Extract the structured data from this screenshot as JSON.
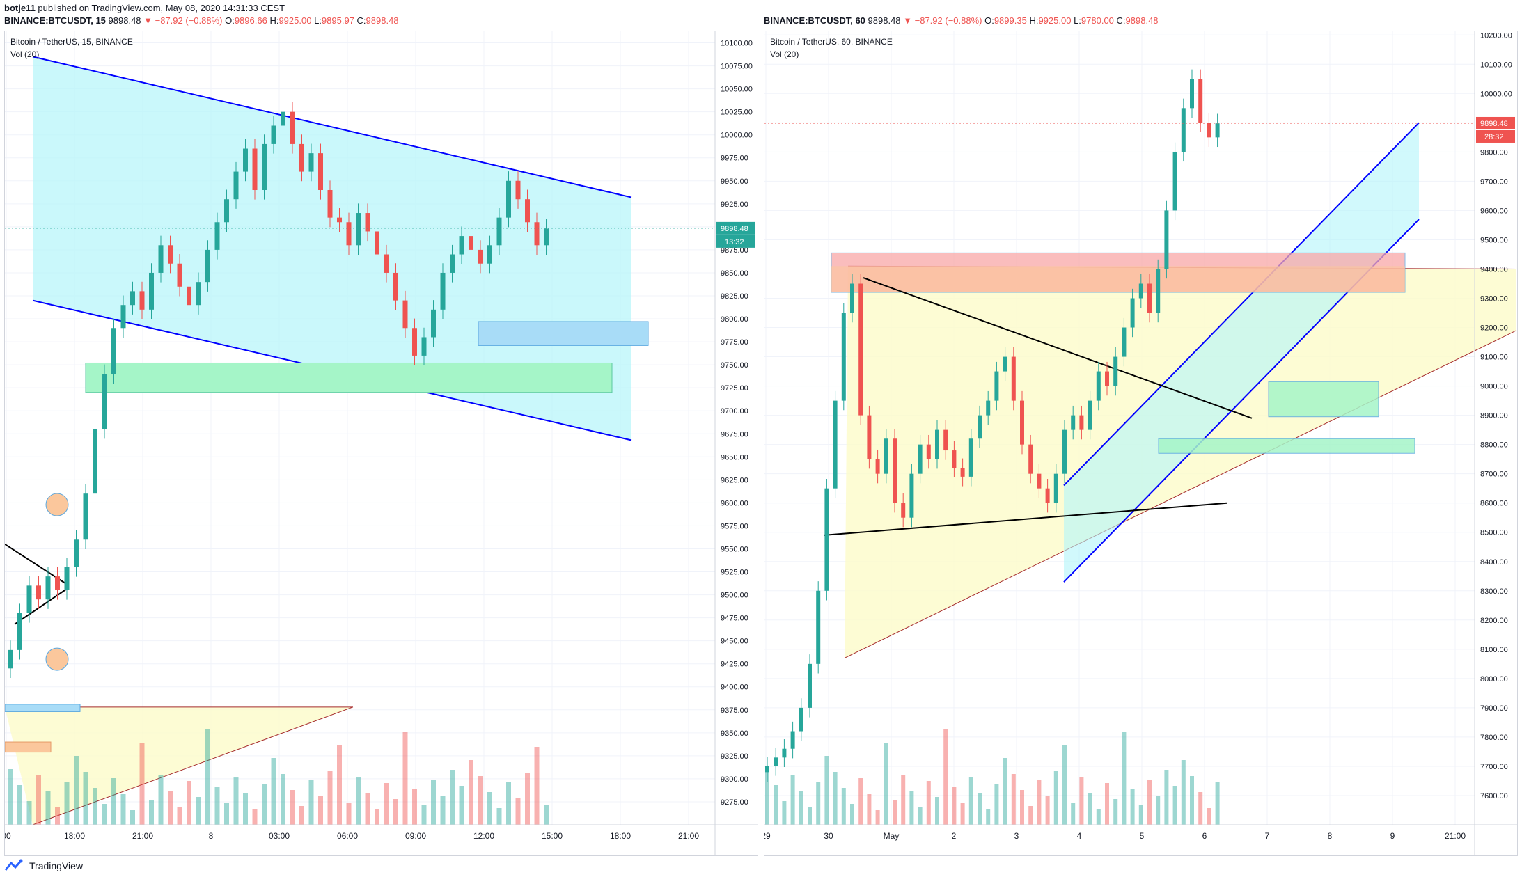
{
  "header": {
    "author": "botje11",
    "published": "published on TradingView.com, May 08, 2020 14:31:33 CEST",
    "left": {
      "symbol": "BINANCE:BTCUSDT, 15",
      "last": "9898.48",
      "change": "▼ −87.92 (−0.88%)",
      "o": "9896.66",
      "h": "9925.00",
      "l": "9895.97",
      "c": "9898.48"
    },
    "right": {
      "symbol": "BINANCE:BTCUSDT, 60",
      "last": "9898.48",
      "change": "▼ −87.92 (−0.88%)",
      "o": "9899.35",
      "h": "9925.00",
      "l": "9780.00",
      "c": "9898.48"
    }
  },
  "footer": {
    "brand": "TradingView"
  },
  "colors": {
    "up": "#26a69a",
    "down": "#ef5350",
    "channel": "#0000ff",
    "cyan": "#b3f5fa",
    "green": "#a5f5c8",
    "yellow": "#fdfbc9",
    "pink": "#f9a7a7",
    "orange": "#fbc79c"
  },
  "chart_data": [
    {
      "type": "candlestick",
      "title": "Bitcoin / TetherUS, 15, BINANCE",
      "indicator": "Vol (20)",
      "ylim": [
        9250,
        10112.5
      ],
      "y_ticks": [
        9275,
        9300,
        9325,
        9350,
        9375,
        9400,
        9425,
        9450,
        9475,
        9500,
        9525,
        9550,
        9575,
        9600,
        9625,
        9650,
        9675,
        9700,
        9725,
        9750,
        9775,
        9800,
        9825,
        9850,
        9875,
        9900,
        9925,
        9950,
        9975,
        10000,
        10025,
        10050,
        10075,
        10100
      ],
      "x_ticks": [
        "00",
        "18:00",
        "21:00",
        "8",
        "03:00",
        "06:00",
        "09:00",
        "12:00",
        "15:00",
        "18:00",
        "21:00"
      ],
      "last_price": "9898.48",
      "countdown": "13:32",
      "close_series": [
        9440,
        9480,
        9510,
        9495,
        9520,
        9505,
        9530,
        9560,
        9610,
        9680,
        9740,
        9790,
        9815,
        9830,
        9810,
        9850,
        9880,
        9860,
        9835,
        9815,
        9840,
        9875,
        9905,
        9930,
        9960,
        9985,
        9940,
        9990,
        10010,
        10025,
        9990,
        9960,
        9980,
        9940,
        9910,
        9905,
        9880,
        9915,
        9895,
        9870,
        9850,
        9820,
        9790,
        9760,
        9780,
        9810,
        9850,
        9870,
        9890,
        9875,
        9860,
        9880,
        9910,
        9950,
        9930,
        9905,
        9880,
        9898
      ]
    },
    {
      "type": "candlestick",
      "title": "Bitcoin / TetherUS, 60, BINANCE",
      "indicator": "Vol (20)",
      "ylim": [
        7500,
        10212.5
      ],
      "y_ticks": [
        7600,
        7700,
        7800,
        7900,
        8000,
        8100,
        8200,
        8300,
        8400,
        8500,
        8600,
        8700,
        8800,
        8900,
        9000,
        9100,
        9200,
        9300,
        9400,
        9500,
        9600,
        9700,
        9800,
        9900,
        10000,
        10100,
        10200
      ],
      "x_ticks": [
        "29",
        "30",
        "May",
        "2",
        "3",
        "4",
        "5",
        "6",
        "7",
        "8",
        "9",
        "21:00"
      ],
      "last_price": "9898.48",
      "countdown": "28:32",
      "close_series": [
        7700,
        7730,
        7760,
        7820,
        7900,
        8050,
        8300,
        8650,
        8950,
        9250,
        9350,
        8900,
        8750,
        8700,
        8820,
        8600,
        8550,
        8700,
        8800,
        8750,
        8850,
        8780,
        8720,
        8690,
        8820,
        8900,
        8950,
        9050,
        9100,
        8950,
        8800,
        8700,
        8650,
        8600,
        8700,
        8850,
        8900,
        8850,
        8950,
        9050,
        9000,
        9100,
        9200,
        9300,
        9350,
        9250,
        9400,
        9600,
        9800,
        9950,
        10050,
        9900,
        9850,
        9898
      ]
    }
  ]
}
